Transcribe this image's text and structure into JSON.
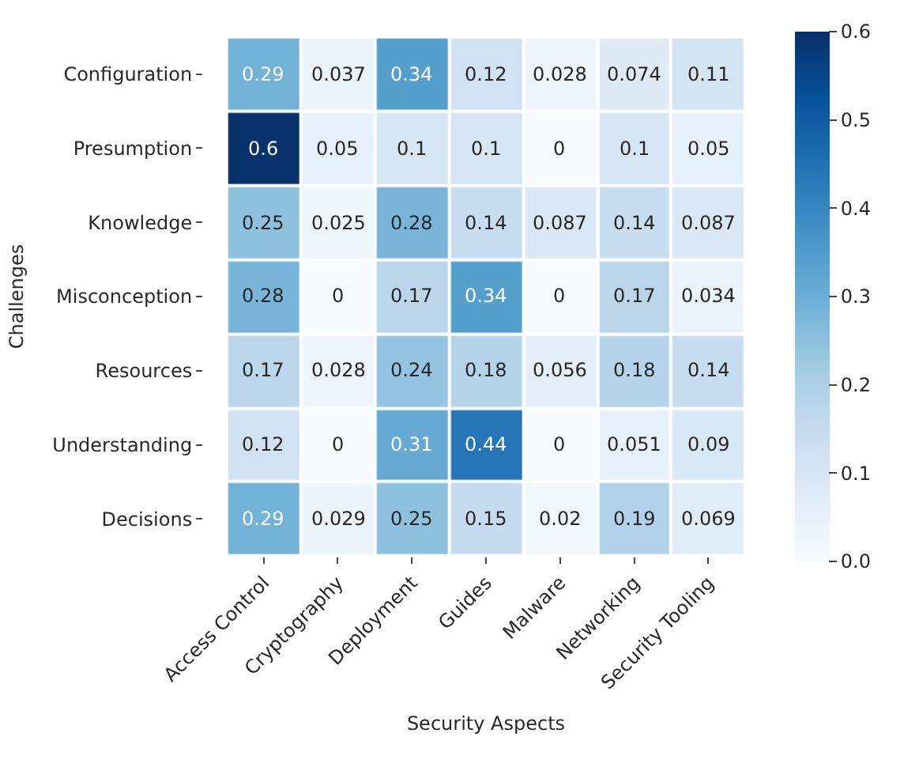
{
  "chart_data": {
    "type": "heatmap",
    "xlabel": "Security Aspects",
    "ylabel": "Challenges",
    "categories": [
      "Access Control",
      "Cryptography",
      "Deployment",
      "Guides",
      "Malware",
      "Networking",
      "Security Tooling"
    ],
    "y_categories": [
      "Configuration",
      "Presumption",
      "Knowledge",
      "Misconception",
      "Resources",
      "Understanding",
      "Decisions"
    ],
    "cells": [
      [
        0.29,
        0.037,
        0.34,
        0.12,
        0.028,
        0.074,
        0.11
      ],
      [
        0.6,
        0.05,
        0.1,
        0.1,
        0,
        0.1,
        0.05
      ],
      [
        0.25,
        0.025,
        0.28,
        0.14,
        0.087,
        0.14,
        0.087
      ],
      [
        0.28,
        0,
        0.17,
        0.34,
        0,
        0.17,
        0.034
      ],
      [
        0.17,
        0.028,
        0.24,
        0.18,
        0.056,
        0.18,
        0.14
      ],
      [
        0.12,
        0,
        0.31,
        0.44,
        0,
        0.051,
        0.09
      ],
      [
        0.29,
        0.029,
        0.25,
        0.15,
        0.02,
        0.19,
        0.069
      ]
    ],
    "clim": [
      0,
      0.6
    ],
    "cticks": [
      {
        "value": 0,
        "label": "0.0"
      },
      {
        "value": 0.1,
        "label": "0.1"
      },
      {
        "value": 0.2,
        "label": "0.2"
      },
      {
        "value": 0.3,
        "label": "0.3"
      },
      {
        "value": 0.4,
        "label": "0.4"
      },
      {
        "value": 0.5,
        "label": "0.5"
      },
      {
        "value": 0.6,
        "label": "0.6"
      }
    ],
    "data_labels": true
  }
}
